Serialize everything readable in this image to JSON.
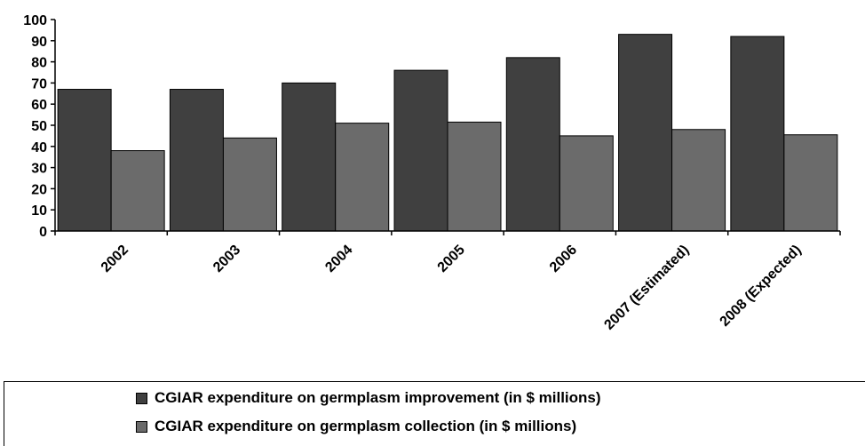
{
  "chart_data": {
    "type": "bar",
    "title": "",
    "xlabel": "",
    "ylabel": "",
    "ylim": [
      0,
      100
    ],
    "yticks": [
      0,
      10,
      20,
      30,
      40,
      50,
      60,
      70,
      80,
      90,
      100
    ],
    "categories": [
      "2002",
      "2003",
      "2004",
      "2005",
      "2006",
      "2007 (Estimated)",
      "2008 (Expected)"
    ],
    "series": [
      {
        "name": "CGIAR expenditure on germplasm improvement (in $ millions)",
        "color": "#404040",
        "values": [
          67,
          67,
          70,
          76,
          82,
          93,
          92
        ]
      },
      {
        "name": "CGIAR expenditure on germplasm collection (in $ millions)",
        "color": "#6b6b6b",
        "values": [
          38,
          44,
          51,
          51.5,
          45,
          48,
          45.5
        ]
      }
    ],
    "grid": false,
    "legend_position": "bottom"
  }
}
